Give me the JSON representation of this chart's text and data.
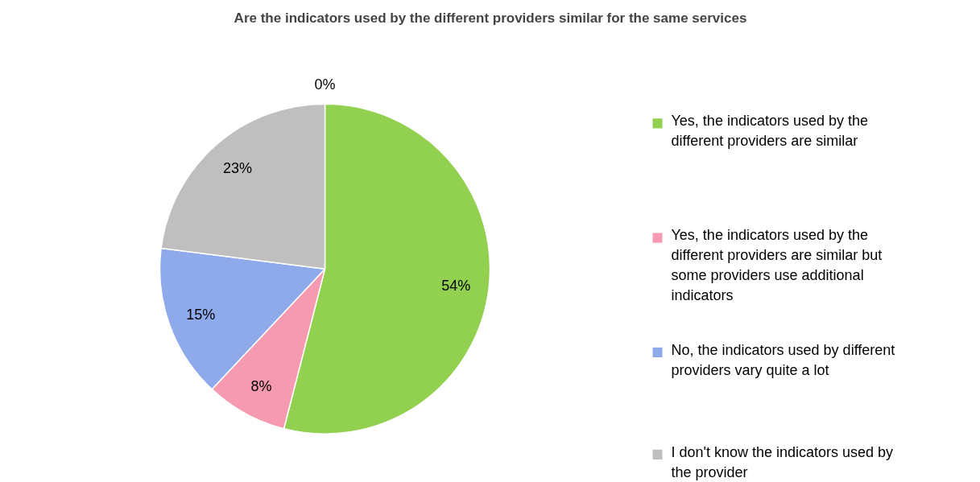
{
  "chart_data": {
    "type": "pie",
    "title": "Are the indicators used by the different providers similar for the same services",
    "categories": [
      "Yes, the indicators used by the different providers are similar",
      "Yes, the indicators used by the different providers are similar but some providers use additional indicators",
      "No, the indicators used by different providers vary quite a lot",
      "I don't know the indicators used by the provider",
      null
    ],
    "values": [
      54,
      8,
      15,
      23,
      0
    ],
    "colors": [
      "#92d050",
      "#f59ab0",
      "#8eaaea",
      "#bfbfbf",
      "#4f81bd"
    ],
    "value_labels": [
      "54%",
      "8%",
      "15%",
      "23%",
      "0%"
    ],
    "legend": "right"
  }
}
